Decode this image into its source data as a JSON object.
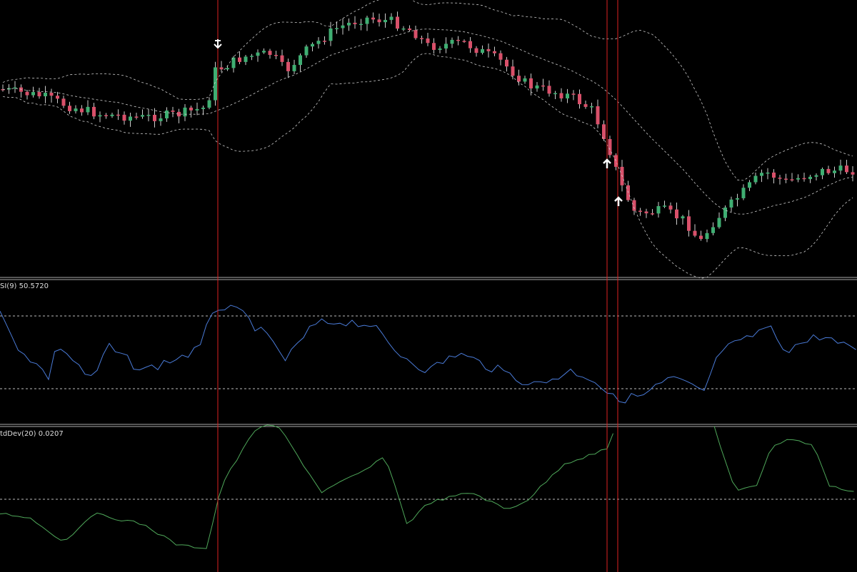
{
  "panels": {
    "rsi": {
      "label": "SI(9) 50.5720"
    },
    "stddev": {
      "label": "tdDev(20) 0.0207"
    }
  }
}
